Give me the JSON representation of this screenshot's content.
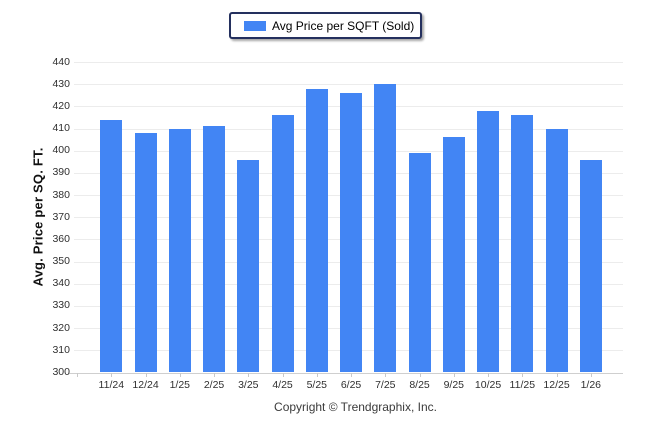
{
  "legend": {
    "label": "Avg Price per SQFT (Sold)",
    "swatch_color": "#4285F4",
    "border_color": "#24305e"
  },
  "footer": {
    "copyright": "Copyright © Trendgraphix, Inc."
  },
  "chart_data": {
    "type": "bar",
    "title": "",
    "xlabel": "",
    "ylabel": "Avg. Price per SQ. FT.",
    "categories": [
      "11/24",
      "12/24",
      "1/25",
      "2/25",
      "3/25",
      "4/25",
      "5/25",
      "6/25",
      "7/25",
      "8/25",
      "9/25",
      "10/25",
      "11/25",
      "12/25",
      "1/26"
    ],
    "series": [
      {
        "name": "Avg Price per SQFT (Sold)",
        "color": "#4285F4",
        "values": [
          414,
          408,
          410,
          411,
          396,
          416,
          428,
          426,
          430,
          399,
          406,
          418,
          416,
          410,
          396
        ]
      }
    ],
    "ylim": [
      300,
      440
    ],
    "yticks": [
      440,
      430,
      420,
      410,
      400,
      390,
      380,
      370,
      360,
      350,
      340,
      330,
      320,
      310,
      300
    ],
    "grid": true,
    "legend_position": "top-center",
    "colors": {
      "grid": "#ececec",
      "baseline": "#cfcfcf",
      "tick": "#c9c9c9",
      "axis_text": "#2f2f2f"
    }
  }
}
